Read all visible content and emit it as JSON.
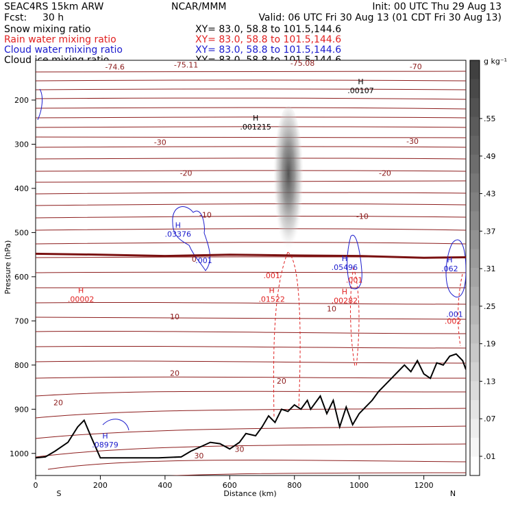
{
  "header": {
    "model": "SEAC4RS 15km ARW",
    "org": "NCAR/MMM",
    "init": "Init: 00 UTC Thu 29 Aug 13",
    "fcst_label": "Fcst:",
    "fcst_value": "30 h",
    "valid": "Valid: 06 UTC Fri 30 Aug 13 (01 CDT Fri 30 Aug 13)"
  },
  "fields": [
    {
      "name": "Snow mixing ratio",
      "xy": "XY=  83.0, 58.8 to 101.5,144.6",
      "color": "#000000"
    },
    {
      "name": "Rain water mixing ratio",
      "xy": "XY=  83.0, 58.8 to 101.5,144.6",
      "color": "#e02020"
    },
    {
      "name": "Cloud water mixing ratio",
      "xy": "XY=  83.0, 58.8 to 101.5,144.6",
      "color": "#1a1acc"
    },
    {
      "name": "Cloud ice mixing ratio",
      "xy": "XY=  83.0, 58.8 to 101.5,144.6",
      "color": "#000000"
    }
  ],
  "chart_data": {
    "type": "cross-section",
    "xlabel": "Distance (km)",
    "ylabel": "Pressure (hPa)",
    "xlim": [
      0,
      1330
    ],
    "ylim": [
      1050,
      110
    ],
    "x_ticks": [
      0,
      200,
      400,
      600,
      800,
      1000,
      1200
    ],
    "y_ticks": [
      200,
      300,
      400,
      500,
      600,
      700,
      800,
      900,
      1000
    ],
    "x_end_labels": {
      "left": "S",
      "right": "N"
    },
    "colorbar": {
      "unit": "g kg⁻¹",
      "ticks": [
        ".55",
        ".49",
        ".43",
        ".37",
        ".31",
        ".25",
        ".19",
        ".13",
        ".07",
        ".01"
      ]
    },
    "temperature_labels": [
      {
        "text": "-74.6",
        "x": 245,
        "p": 125,
        "color": "#8b1a1a"
      },
      {
        "text": "-75.11",
        "x": 465,
        "p": 120,
        "color": "#8b1a1a"
      },
      {
        "text": "-75.08",
        "x": 825,
        "p": 116,
        "color": "#8b1a1a"
      },
      {
        "text": "-70",
        "x": 1175,
        "p": 124,
        "color": "#8b1a1a"
      },
      {
        "text": "-30",
        "x": 385,
        "p": 295,
        "color": "#8b1a1a"
      },
      {
        "text": "-30",
        "x": 1165,
        "p": 293,
        "color": "#8b1a1a"
      },
      {
        "text": "-20",
        "x": 465,
        "p": 365,
        "color": "#8b1a1a"
      },
      {
        "text": "-20",
        "x": 1080,
        "p": 365,
        "color": "#8b1a1a"
      },
      {
        "text": "-10",
        "x": 525,
        "p": 460,
        "color": "#8b1a1a"
      },
      {
        "text": "-10",
        "x": 1010,
        "p": 463,
        "color": "#8b1a1a"
      },
      {
        "text": "0",
        "x": 490,
        "p": 560,
        "color": "#8b1a1a"
      },
      {
        "text": "10",
        "x": 430,
        "p": 690,
        "color": "#8b1a1a"
      },
      {
        "text": "10",
        "x": 915,
        "p": 672,
        "color": "#8b1a1a"
      },
      {
        "text": "20",
        "x": 70,
        "p": 885,
        "color": "#8b1a1a"
      },
      {
        "text": "20",
        "x": 430,
        "p": 818,
        "color": "#8b1a1a"
      },
      {
        "text": "20",
        "x": 760,
        "p": 836,
        "color": "#8b1a1a"
      },
      {
        "text": "30",
        "x": 630,
        "p": 990,
        "color": "#8b1a1a"
      },
      {
        "text": "30",
        "x": 505,
        "p": 1005,
        "color": "#8b1a1a"
      }
    ],
    "extrema": [
      {
        "mark": "H",
        "value": ".00107",
        "x": 1005,
        "p": 180,
        "color": "#000000"
      },
      {
        "mark": "H",
        "value": ".001215",
        "x": 680,
        "p": 262,
        "color": "#000000"
      },
      {
        "mark": "H",
        "value": ".03376",
        "x": 440,
        "p": 505,
        "color": "#1a1acc"
      },
      {
        "text": ".001",
        "x": 520,
        "p": 563,
        "color": "#1a1acc"
      },
      {
        "mark": "H",
        "value": ".05496",
        "x": 955,
        "p": 580,
        "color": "#1a1acc"
      },
      {
        "mark": "H",
        "value": ".062",
        "x": 1280,
        "p": 583,
        "color": "#1a1acc"
      },
      {
        "text": ".001",
        "x": 1295,
        "p": 685,
        "color": "#1a1acc"
      },
      {
        "mark": "H",
        "value": ".08979",
        "x": 215,
        "p": 982,
        "color": "#1a1acc"
      },
      {
        "mark": "H",
        "value": ".00002",
        "x": 140,
        "p": 652,
        "color": "#e02020"
      },
      {
        "text": ".001",
        "x": 730,
        "p": 597,
        "color": "#e02020"
      },
      {
        "mark": "H",
        "value": ".01522",
        "x": 730,
        "p": 652,
        "color": "#e02020"
      },
      {
        "text": ".001",
        "x": 985,
        "p": 607,
        "color": "#e02020"
      },
      {
        "mark": "H",
        "value": ".00282",
        "x": 955,
        "p": 655,
        "color": "#e02020"
      },
      {
        "text": ".002",
        "x": 1290,
        "p": 700,
        "color": "#e02020"
      }
    ],
    "terrain": {
      "x": [
        0,
        30,
        60,
        100,
        130,
        150,
        170,
        200,
        230,
        300,
        380,
        450,
        480,
        510,
        540,
        570,
        600,
        630,
        650,
        680,
        700,
        720,
        740,
        760,
        780,
        800,
        820,
        840,
        850,
        860,
        880,
        900,
        920,
        940,
        960,
        980,
        1000,
        1020,
        1040,
        1060,
        1080,
        1100,
        1120,
        1140,
        1160,
        1180,
        1200,
        1220,
        1240,
        1260,
        1280,
        1300,
        1320,
        1330
      ],
      "p": [
        1010,
        1008,
        995,
        975,
        940,
        925,
        960,
        1010,
        1010,
        1010,
        1010,
        1008,
        995,
        985,
        975,
        978,
        990,
        975,
        955,
        960,
        940,
        915,
        930,
        900,
        905,
        890,
        900,
        880,
        900,
        890,
        870,
        910,
        880,
        940,
        895,
        935,
        910,
        895,
        880,
        860,
        845,
        830,
        815,
        800,
        815,
        790,
        820,
        830,
        795,
        800,
        780,
        775,
        790,
        810
      ]
    },
    "zero_isotherm": {
      "x": [
        0,
        200,
        400,
        600,
        800,
        1000,
        1200,
        1330
      ],
      "p": [
        548,
        550,
        553,
        550,
        552,
        553,
        557,
        556
      ]
    }
  }
}
